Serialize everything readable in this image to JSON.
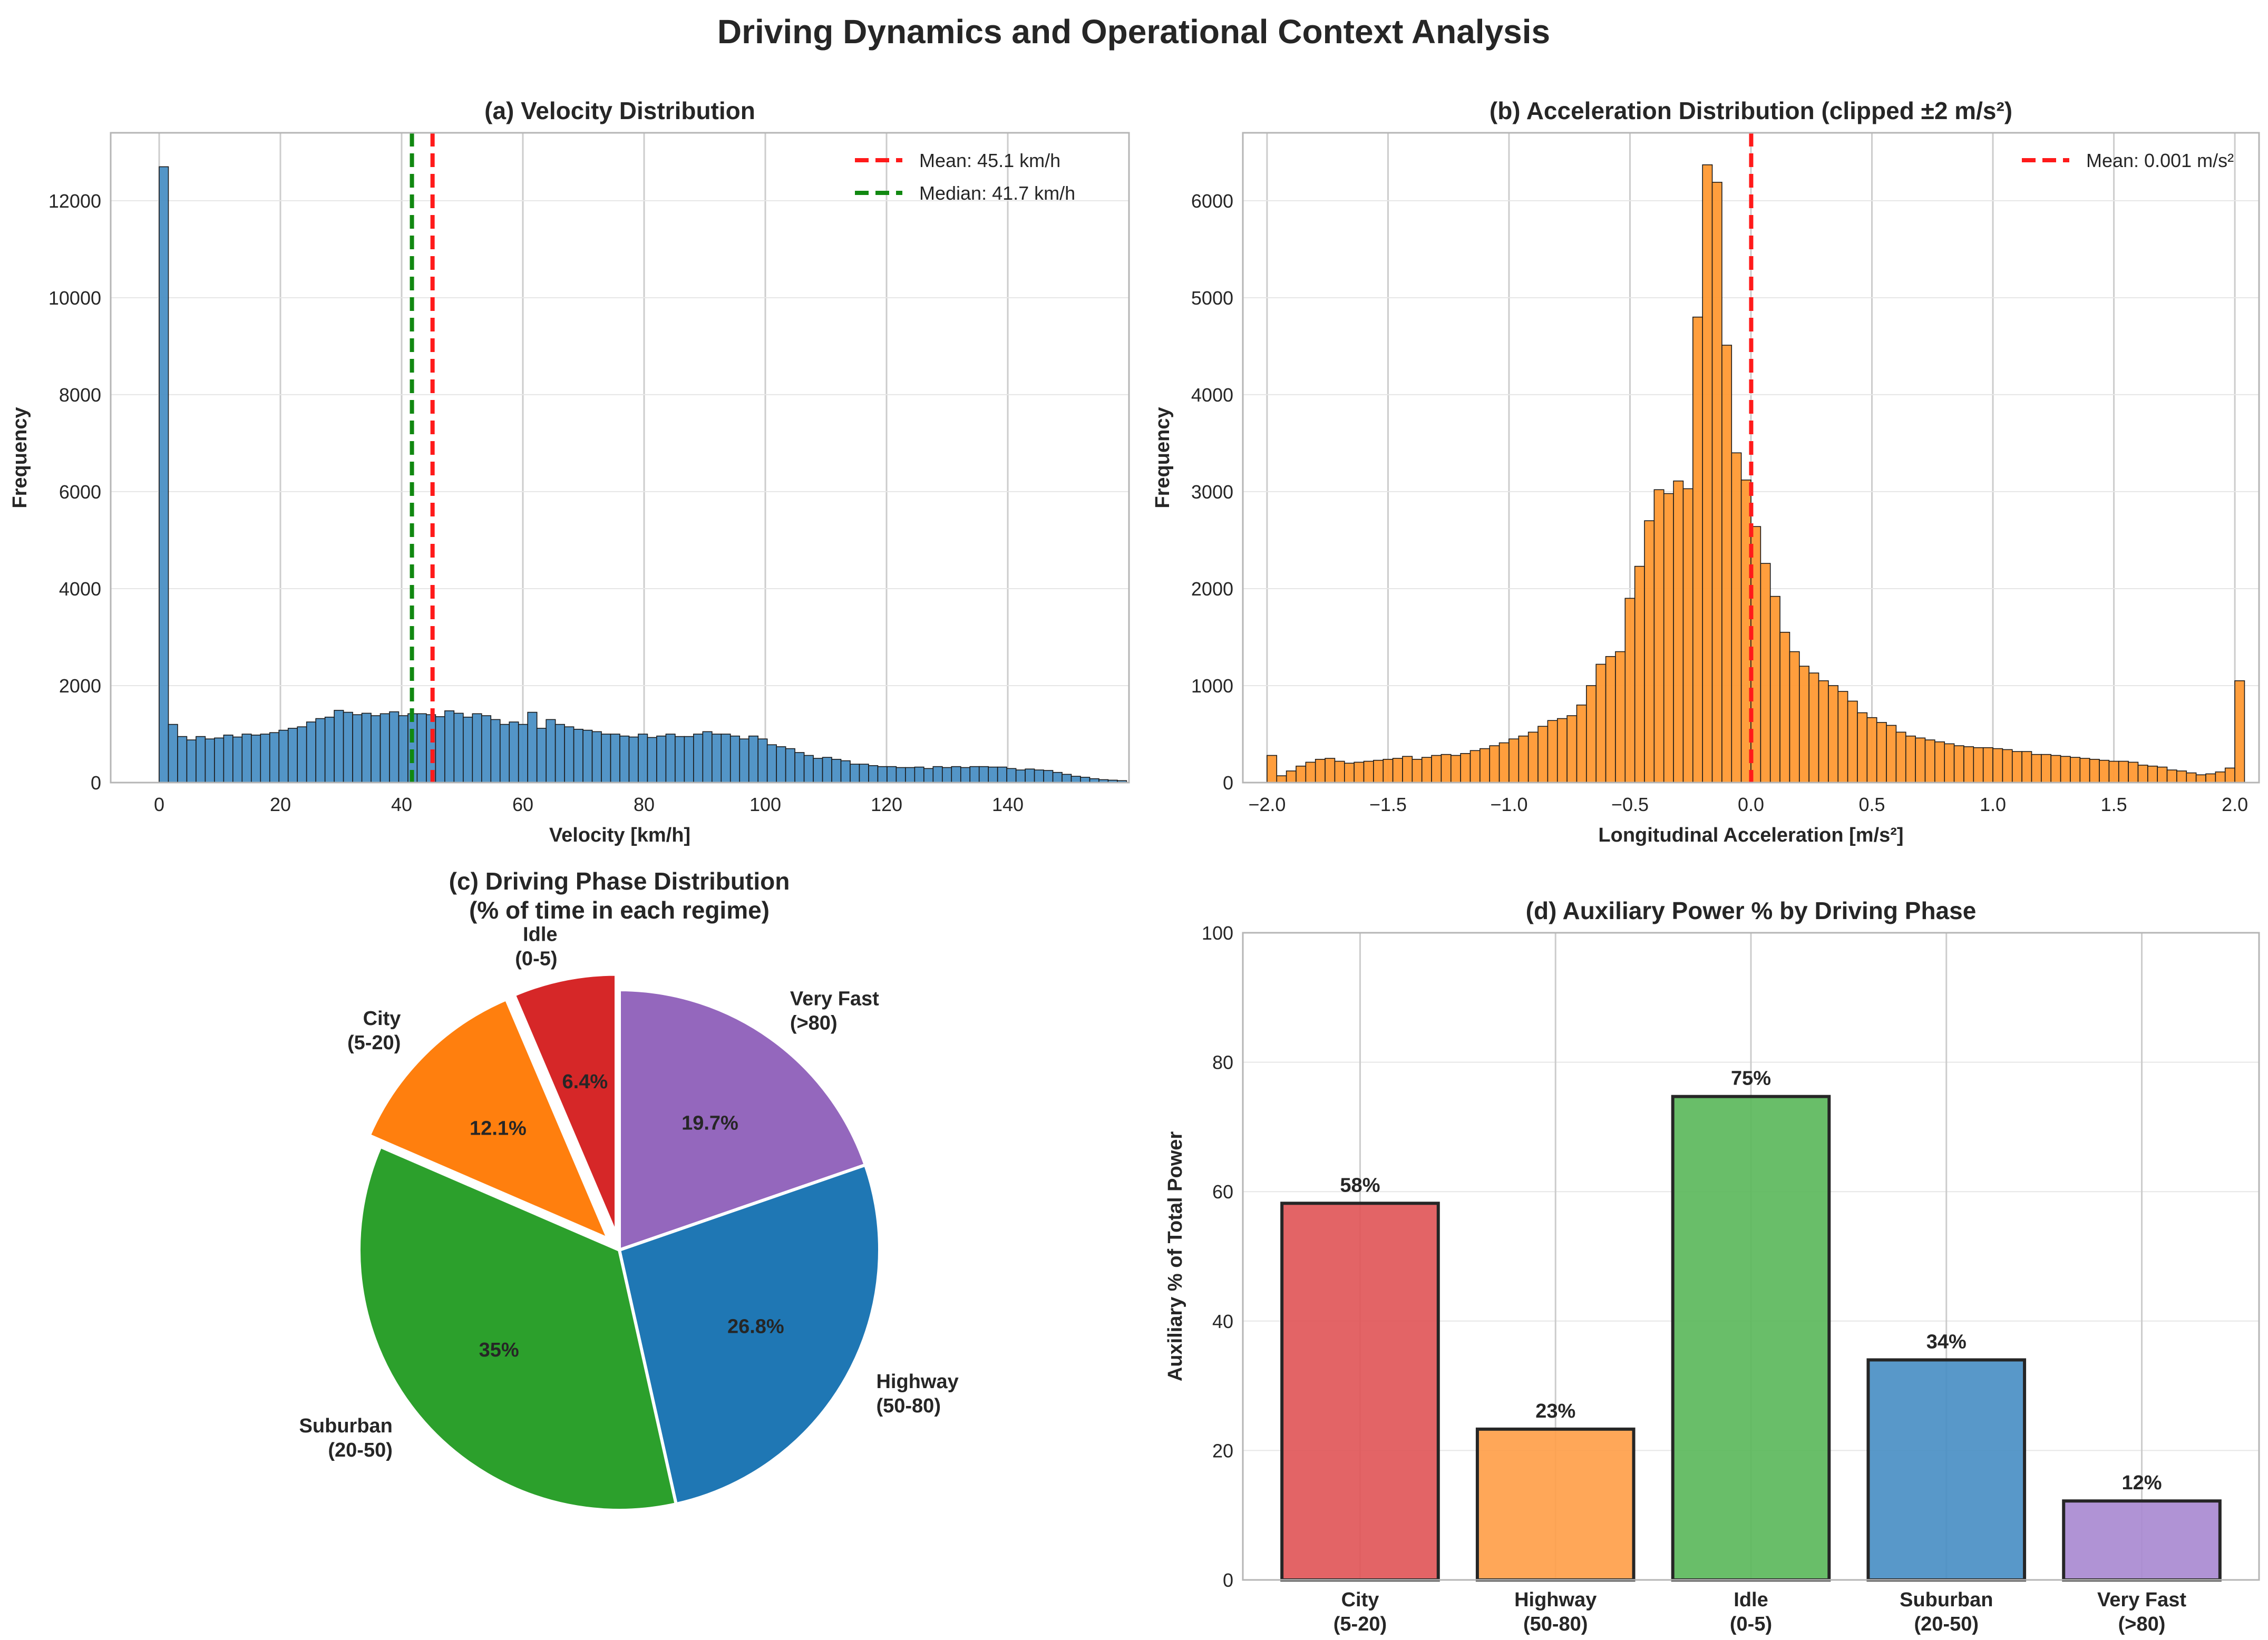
{
  "suptitle": "Driving Dynamics and Operational Context Analysis",
  "colors": {
    "hist_velocity": "#4a8fc4",
    "hist_accel": "#ff9933",
    "mean_line": "#ff1a1a",
    "median_line": "#118811",
    "grid": "#cccccc"
  },
  "chart_data": [
    {
      "id": "a",
      "type": "bar",
      "title": "(a) Velocity Distribution",
      "xlabel": "Velocity [km/h]",
      "ylabel": "Frequency",
      "xlim": [
        -8,
        160
      ],
      "ylim": [
        0,
        13400
      ],
      "xticks": [
        0,
        20,
        40,
        60,
        80,
        100,
        120,
        140
      ],
      "yticks": [
        0,
        2000,
        4000,
        6000,
        8000,
        10000,
        12000
      ],
      "bin_start": 0,
      "bin_width": 1.52,
      "values": [
        12700,
        1200,
        950,
        880,
        950,
        900,
        920,
        980,
        940,
        1000,
        980,
        1000,
        1030,
        1080,
        1120,
        1150,
        1250,
        1320,
        1350,
        1490,
        1450,
        1400,
        1430,
        1380,
        1420,
        1460,
        1380,
        1420,
        1420,
        1400,
        1360,
        1480,
        1430,
        1350,
        1420,
        1380,
        1300,
        1200,
        1250,
        1200,
        1450,
        1120,
        1300,
        1200,
        1150,
        1100,
        1080,
        1050,
        1000,
        1000,
        960,
        940,
        1000,
        930,
        960,
        1000,
        950,
        950,
        1000,
        1050,
        1000,
        1000,
        960,
        900,
        960,
        900,
        780,
        740,
        700,
        620,
        560,
        500,
        520,
        480,
        450,
        380,
        380,
        350,
        330,
        330,
        310,
        310,
        320,
        290,
        330,
        310,
        330,
        310,
        330,
        330,
        320,
        320,
        290,
        260,
        280,
        260,
        250,
        210,
        170,
        130,
        110,
        80,
        60,
        50,
        40
      ],
      "lines": [
        {
          "label": "Mean: 45.1 km/h",
          "x": 45.1,
          "color": "#ff1a1a"
        },
        {
          "label": "Median: 41.7 km/h",
          "x": 41.7,
          "color": "#118811"
        }
      ],
      "legend": "top-right",
      "grid": true
    },
    {
      "id": "b",
      "type": "bar",
      "title": "(b) Acceleration Distribution (clipped ±2 m/s²)",
      "xlabel": "Longitudinal Acceleration [m/s²]",
      "ylabel": "Frequency",
      "xlim": [
        -2.1,
        2.1
      ],
      "ylim": [
        0,
        6700
      ],
      "xticks": [
        -2.0,
        -1.5,
        -1.0,
        -0.5,
        0.0,
        0.5,
        1.0,
        1.5,
        2.0
      ],
      "xtick_labels": [
        "−2.0",
        "−1.5",
        "−1.0",
        "−0.5",
        "0.0",
        "0.5",
        "1.0",
        "1.5",
        "2.0"
      ],
      "yticks": [
        0,
        1000,
        2000,
        3000,
        4000,
        5000,
        6000
      ],
      "bin_start": -2.0,
      "bin_width": 0.04,
      "values": [
        280,
        70,
        120,
        170,
        210,
        240,
        250,
        220,
        200,
        210,
        220,
        230,
        240,
        250,
        270,
        240,
        260,
        280,
        290,
        280,
        300,
        330,
        350,
        380,
        410,
        450,
        480,
        520,
        580,
        640,
        660,
        690,
        800,
        1000,
        1220,
        1300,
        1350,
        1900,
        2230,
        2700,
        3020,
        2980,
        3110,
        3030,
        4800,
        6370,
        6190,
        4510,
        3400,
        3120,
        2640,
        2260,
        1920,
        1550,
        1350,
        1200,
        1130,
        1050,
        1000,
        940,
        840,
        720,
        670,
        620,
        590,
        520,
        480,
        460,
        440,
        420,
        400,
        380,
        370,
        360,
        360,
        350,
        340,
        320,
        320,
        290,
        290,
        280,
        270,
        260,
        250,
        240,
        230,
        220,
        220,
        210,
        180,
        170,
        160,
        130,
        120,
        100,
        80,
        90,
        110,
        150,
        1050
      ],
      "lines": [
        {
          "label": "Mean: 0.001 m/s²",
          "x": 0.001,
          "color": "#ff1a1a"
        }
      ],
      "legend": "top-right",
      "grid": true
    },
    {
      "id": "c",
      "type": "pie",
      "title_lines": [
        "(c) Driving Phase Distribution",
        "(% of time in each regime)"
      ],
      "slices": [
        {
          "label_lines": [
            "Very Fast",
            "(>80)"
          ],
          "pct": 19.7,
          "pct_label": "19.7%",
          "color": "#9467bd",
          "explode": false
        },
        {
          "label_lines": [
            "Highway",
            "(50-80)"
          ],
          "pct": 26.8,
          "pct_label": "26.8%",
          "color": "#1f77b4",
          "explode": false
        },
        {
          "label_lines": [
            "Suburban",
            "(20-50)"
          ],
          "pct": 35.0,
          "pct_label": "35%",
          "color": "#2ca02c",
          "explode": false
        },
        {
          "label_lines": [
            "City",
            "(5-20)"
          ],
          "pct": 12.1,
          "pct_label": "12.1%",
          "color": "#ff7f0e",
          "explode": true
        },
        {
          "label_lines": [
            "Idle",
            "(0-5)"
          ],
          "pct": 6.4,
          "pct_label": "6.4%",
          "color": "#d62728",
          "explode": true
        }
      ]
    },
    {
      "id": "d",
      "type": "bar",
      "title": "(d) Auxiliary Power % by Driving Phase",
      "xlabel": "",
      "ylabel": "Auxiliary % of Total Power",
      "ylim": [
        0,
        100
      ],
      "yticks": [
        0,
        20,
        40,
        60,
        80,
        100
      ],
      "categories": [
        {
          "lines": [
            "City",
            "(5-20)"
          ]
        },
        {
          "lines": [
            "Highway",
            "(50-80)"
          ]
        },
        {
          "lines": [
            "Idle",
            "(0-5)"
          ]
        },
        {
          "lines": [
            "Suburban",
            "(20-50)"
          ]
        },
        {
          "lines": [
            "Very Fast",
            "(>80)"
          ]
        }
      ],
      "values": [
        58.2,
        23.3,
        74.7,
        34.0,
        12.2
      ],
      "value_labels": [
        "58%",
        "23%",
        "75%",
        "34%",
        "12%"
      ],
      "colors": [
        "#e15759",
        "#ff9f4a",
        "#5cb85c",
        "#4a8fc4",
        "#a98ad1"
      ],
      "grid": true
    }
  ]
}
